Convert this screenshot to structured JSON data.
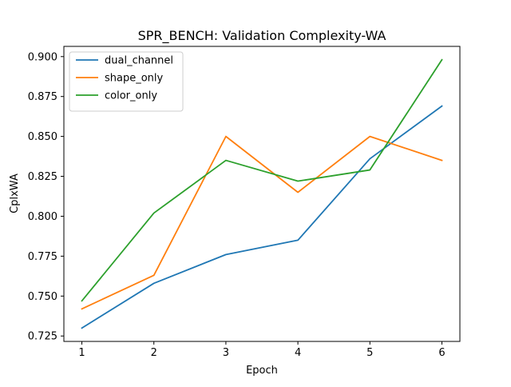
{
  "chart_data": {
    "type": "line",
    "title": "SPR_BENCH: Validation Complexity-WA",
    "xlabel": "Epoch",
    "ylabel": "CplxWA",
    "x": [
      1,
      2,
      3,
      4,
      5,
      6
    ],
    "xlim": [
      0.75,
      6.25
    ],
    "ylim": [
      0.7216,
      0.9064
    ],
    "x_ticks": [
      "1",
      "2",
      "3",
      "4",
      "5",
      "6"
    ],
    "y_ticks": [
      "0.725",
      "0.750",
      "0.775",
      "0.800",
      "0.825",
      "0.850",
      "0.875",
      "0.900"
    ],
    "y_tick_values": [
      0.725,
      0.75,
      0.775,
      0.8,
      0.825,
      0.85,
      0.875,
      0.9
    ],
    "grid": false,
    "legend_position": "top-left",
    "series": [
      {
        "name": "dual_channel",
        "color": "#1f77b4",
        "values": [
          0.73,
          0.758,
          0.776,
          0.785,
          0.836,
          0.869
        ]
      },
      {
        "name": "shape_only",
        "color": "#ff7f0e",
        "values": [
          0.742,
          0.763,
          0.85,
          0.815,
          0.85,
          0.835
        ]
      },
      {
        "name": "color_only",
        "color": "#2ca02c",
        "values": [
          0.747,
          0.802,
          0.835,
          0.822,
          0.829,
          0.898
        ]
      }
    ]
  }
}
